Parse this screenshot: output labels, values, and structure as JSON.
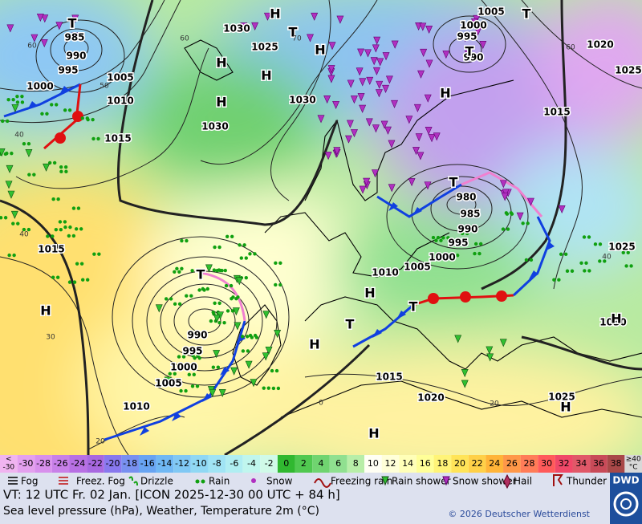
{
  "map": {
    "pressure_labels": [
      "985",
      "990",
      "995",
      "1000",
      "1005",
      "1010",
      "1015",
      "1030",
      "1025",
      "1030",
      "1030",
      "1005",
      "1000",
      "995",
      "990",
      "1020",
      "1025",
      "1015",
      "980",
      "985",
      "990",
      "995",
      "1000",
      "1005",
      "1010",
      "1025",
      "1030",
      "1015",
      "1015",
      "1020",
      "1025",
      "990",
      "995",
      "1000",
      "1005",
      "1010"
    ],
    "centers": [
      "T",
      "T",
      "T",
      "H",
      "H",
      "H",
      "H",
      "H",
      "H",
      "T",
      "T",
      "T",
      "T",
      "T",
      "H",
      "H",
      "H",
      "H",
      "H",
      "H"
    ],
    "temperature_labels": [
      "60",
      "50",
      "40",
      "40",
      "30",
      "20",
      "60",
      "70",
      "60",
      "40",
      "0",
      "20"
    ]
  },
  "temperature_scale": {
    "unit": "°C",
    "cells": [
      {
        "label": [
          "<",
          "-30"
        ],
        "color": "#f0b4f0"
      },
      {
        "label": [
          "-30"
        ],
        "color": "#e4a0ee"
      },
      {
        "label": [
          "-28"
        ],
        "color": "#d890ec"
      },
      {
        "label": [
          "-26"
        ],
        "color": "#c880e8"
      },
      {
        "label": [
          "-24"
        ],
        "color": "#b870e4"
      },
      {
        "label": [
          "-22"
        ],
        "color": "#a868e0"
      },
      {
        "label": [
          "-20"
        ],
        "color": "#8878ee"
      },
      {
        "label": [
          "-18"
        ],
        "color": "#7890f0"
      },
      {
        "label": [
          "-16"
        ],
        "color": "#68a4f2"
      },
      {
        "label": [
          "-14"
        ],
        "color": "#70b8f4"
      },
      {
        "label": [
          "-12"
        ],
        "color": "#80c8f4"
      },
      {
        "label": [
          "-10"
        ],
        "color": "#90d8f4"
      },
      {
        "label": [
          "-8"
        ],
        "color": "#a0e4f4"
      },
      {
        "label": [
          "-6"
        ],
        "color": "#b0eef2"
      },
      {
        "label": [
          "-4"
        ],
        "color": "#c0f6ee"
      },
      {
        "label": [
          "-2"
        ],
        "color": "#d0fae8"
      },
      {
        "label": [
          "0"
        ],
        "color": "#30b830"
      },
      {
        "label": [
          "2"
        ],
        "color": "#50c850"
      },
      {
        "label": [
          "4"
        ],
        "color": "#70d470"
      },
      {
        "label": [
          "6"
        ],
        "color": "#90e090"
      },
      {
        "label": [
          "8"
        ],
        "color": "#b8eea8"
      },
      {
        "label": [
          "10"
        ],
        "color": "#fffff4"
      },
      {
        "label": [
          "12"
        ],
        "color": "#ffffd8"
      },
      {
        "label": [
          "14"
        ],
        "color": "#ffffb8"
      },
      {
        "label": [
          "16"
        ],
        "color": "#ffff98"
      },
      {
        "label": [
          "18"
        ],
        "color": "#fff478"
      },
      {
        "label": [
          "20"
        ],
        "color": "#ffe458"
      },
      {
        "label": [
          "22"
        ],
        "color": "#ffd048"
      },
      {
        "label": [
          "24"
        ],
        "color": "#ffb438"
      },
      {
        "label": [
          "26"
        ],
        "color": "#ff9848"
      },
      {
        "label": [
          "28"
        ],
        "color": "#ff7c58"
      },
      {
        "label": [
          "30"
        ],
        "color": "#ff5a5a"
      },
      {
        "label": [
          "32"
        ],
        "color": "#f04868"
      },
      {
        "label": [
          "34"
        ],
        "color": "#e05868"
      },
      {
        "label": [
          "36"
        ],
        "color": "#c84a58"
      },
      {
        "label": [
          "38"
        ],
        "color": "#a84848"
      },
      {
        "label": [
          "≥40",
          "°C"
        ],
        "color": "#d8d8d8"
      }
    ]
  },
  "weather_legend": [
    "Fog",
    "Freez. Fog",
    "Drizzle",
    "Rain",
    "Snow",
    "Freezing rain",
    "Rain shower",
    "Snow shower",
    "Hail",
    "Thunder storm"
  ],
  "footer": {
    "valid_time": "VT: 12 UTC Fr.  02 Jan. [ICON 2025-12-30  00 UTC + 84 h]",
    "description": "Sea level pressure (hPa), Weather, Temperature 2m (°C)",
    "copyright": "© 2026 Deutscher Wetterdienst",
    "logo": "DWD"
  }
}
